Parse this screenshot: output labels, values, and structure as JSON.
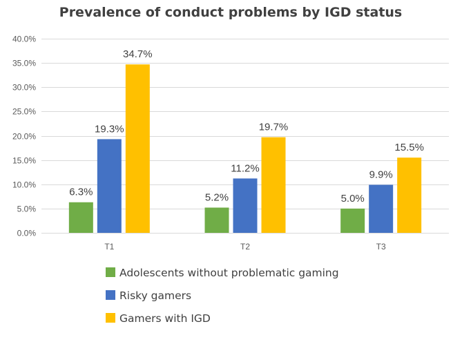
{
  "chart_data": {
    "type": "bar",
    "title": "Prevalence of conduct problems by IGD status",
    "xlabel": "",
    "ylabel": "",
    "categories": [
      "T1",
      "T2",
      "T3"
    ],
    "ylim": [
      0,
      40
    ],
    "ytick_step": 5,
    "ytick_labels": [
      "0.0%",
      "5.0%",
      "10.0%",
      "15.0%",
      "20.0%",
      "25.0%",
      "30.0%",
      "35.0%",
      "40.0%"
    ],
    "grid": true,
    "legend_position": "bottom",
    "series": [
      {
        "name": "Adolescents without problematic gaming",
        "color": "#70ad47",
        "values": [
          6.3,
          5.2,
          5.0
        ],
        "labels": [
          "6.3%",
          "5.2%",
          "5.0%"
        ]
      },
      {
        "name": "Risky gamers",
        "color": "#4472c4",
        "values": [
          19.3,
          11.2,
          9.9
        ],
        "labels": [
          "19.3%",
          "11.2%",
          "9.9%"
        ]
      },
      {
        "name": "Gamers with IGD",
        "color": "#ffc000",
        "values": [
          34.7,
          19.7,
          15.5
        ],
        "labels": [
          "34.7%",
          "19.7%",
          "15.5%"
        ]
      }
    ]
  }
}
